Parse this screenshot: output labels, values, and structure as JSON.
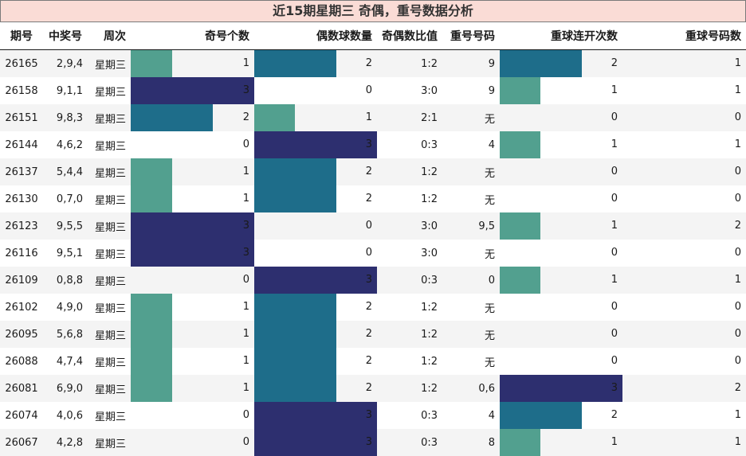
{
  "title": "近15期星期三 奇偶，重号数据分析",
  "colors": {
    "v1": "#52a08f",
    "v2": "#1e6d8a",
    "v3": "#2d2f6f",
    "repeat1": "#33868e",
    "header_bg": "#fadcd6"
  },
  "headers": [
    "期号",
    "中奖号",
    "周次",
    "奇号个数",
    "偶数球数量",
    "奇偶数比值",
    "重号号码",
    "重球连开次数",
    "重球号码数"
  ],
  "chart_data": {
    "type": "table",
    "max": {
      "odd": 3,
      "even": 3,
      "streak": 3,
      "repeat": 2
    },
    "rows": [
      {
        "issue": "26165",
        "numbers": "2,9,4",
        "weekday": "星期三",
        "odd": 1,
        "even": 2,
        "ratio": "1:2",
        "repeat_nums": "9",
        "streak": 2,
        "repeat_count": 1
      },
      {
        "issue": "26158",
        "numbers": "9,1,1",
        "weekday": "星期三",
        "odd": 3,
        "even": 0,
        "ratio": "3:0",
        "repeat_nums": "9",
        "streak": 1,
        "repeat_count": 1
      },
      {
        "issue": "26151",
        "numbers": "9,8,3",
        "weekday": "星期三",
        "odd": 2,
        "even": 1,
        "ratio": "2:1",
        "repeat_nums": "无",
        "streak": 0,
        "repeat_count": 0
      },
      {
        "issue": "26144",
        "numbers": "4,6,2",
        "weekday": "星期三",
        "odd": 0,
        "even": 3,
        "ratio": "0:3",
        "repeat_nums": "4",
        "streak": 1,
        "repeat_count": 1
      },
      {
        "issue": "26137",
        "numbers": "5,4,4",
        "weekday": "星期三",
        "odd": 1,
        "even": 2,
        "ratio": "1:2",
        "repeat_nums": "无",
        "streak": 0,
        "repeat_count": 0
      },
      {
        "issue": "26130",
        "numbers": "0,7,0",
        "weekday": "星期三",
        "odd": 1,
        "even": 2,
        "ratio": "1:2",
        "repeat_nums": "无",
        "streak": 0,
        "repeat_count": 0
      },
      {
        "issue": "26123",
        "numbers": "9,5,5",
        "weekday": "星期三",
        "odd": 3,
        "even": 0,
        "ratio": "3:0",
        "repeat_nums": "9,5",
        "streak": 1,
        "repeat_count": 2
      },
      {
        "issue": "26116",
        "numbers": "9,5,1",
        "weekday": "星期三",
        "odd": 3,
        "even": 0,
        "ratio": "3:0",
        "repeat_nums": "无",
        "streak": 0,
        "repeat_count": 0
      },
      {
        "issue": "26109",
        "numbers": "0,8,8",
        "weekday": "星期三",
        "odd": 0,
        "even": 3,
        "ratio": "0:3",
        "repeat_nums": "0",
        "streak": 1,
        "repeat_count": 1
      },
      {
        "issue": "26102",
        "numbers": "4,9,0",
        "weekday": "星期三",
        "odd": 1,
        "even": 2,
        "ratio": "1:2",
        "repeat_nums": "无",
        "streak": 0,
        "repeat_count": 0
      },
      {
        "issue": "26095",
        "numbers": "5,6,8",
        "weekday": "星期三",
        "odd": 1,
        "even": 2,
        "ratio": "1:2",
        "repeat_nums": "无",
        "streak": 0,
        "repeat_count": 0
      },
      {
        "issue": "26088",
        "numbers": "4,7,4",
        "weekday": "星期三",
        "odd": 1,
        "even": 2,
        "ratio": "1:2",
        "repeat_nums": "无",
        "streak": 0,
        "repeat_count": 0
      },
      {
        "issue": "26081",
        "numbers": "6,9,0",
        "weekday": "星期三",
        "odd": 1,
        "even": 2,
        "ratio": "1:2",
        "repeat_nums": "0,6",
        "streak": 3,
        "repeat_count": 2
      },
      {
        "issue": "26074",
        "numbers": "4,0,6",
        "weekday": "星期三",
        "odd": 0,
        "even": 3,
        "ratio": "0:3",
        "repeat_nums": "4",
        "streak": 2,
        "repeat_count": 1
      },
      {
        "issue": "26067",
        "numbers": "4,2,8",
        "weekday": "星期三",
        "odd": 0,
        "even": 3,
        "ratio": "0:3",
        "repeat_nums": "8",
        "streak": 1,
        "repeat_count": 1
      }
    ]
  }
}
